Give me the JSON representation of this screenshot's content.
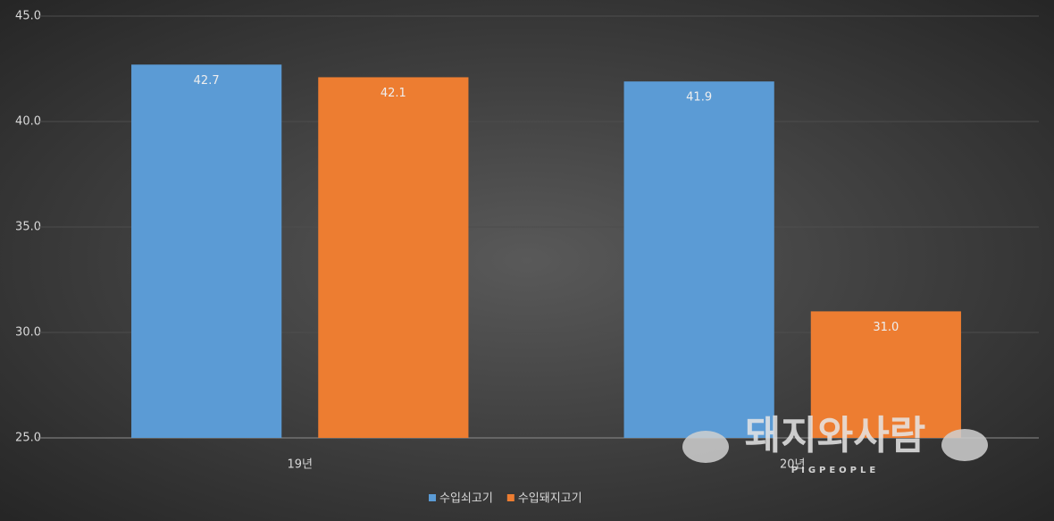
{
  "chart_data": {
    "type": "bar",
    "categories": [
      "19년",
      "20년"
    ],
    "series": [
      {
        "name": "수입쇠고기",
        "color": "#5b9bd5",
        "values": [
          42.7,
          41.9
        ],
        "value_labels": [
          "42.7",
          "41.9"
        ]
      },
      {
        "name": "수입돼지고기",
        "color": "#ed7d31",
        "values": [
          42.1,
          31
        ],
        "value_labels": [
          "42.1",
          "31.0"
        ]
      }
    ],
    "ylim": [
      25,
      45
    ],
    "yticks": [
      {
        "value": 25,
        "label": "25.0"
      },
      {
        "value": 30,
        "label": "30.0"
      },
      {
        "value": 35,
        "label": "35.0"
      },
      {
        "value": 40,
        "label": "40.0"
      },
      {
        "value": 45,
        "label": "45.0"
      }
    ],
    "grid": true,
    "legend": "bottom",
    "watermark": {
      "title": "돼지와사람",
      "subtitle": "PIGPEOPLE"
    }
  }
}
